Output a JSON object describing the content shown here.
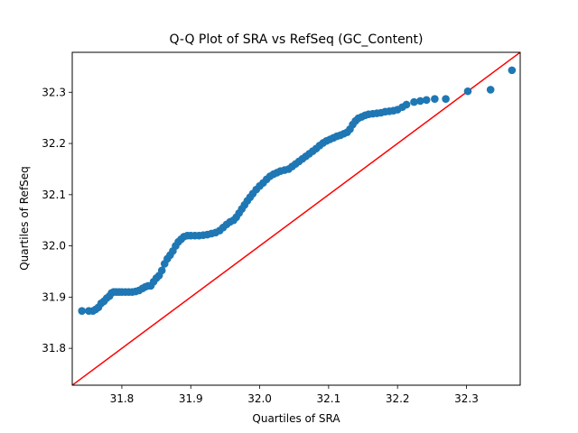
{
  "chart_data": {
    "type": "scatter",
    "title": "Q-Q Plot of SRA vs RefSeq (GC_Content)",
    "xlabel": "Quartiles of SRA",
    "ylabel": "Quartiles of RefSeq",
    "xlim": [
      31.728,
      32.378
    ],
    "ylim": [
      31.728,
      32.378
    ],
    "xticks": [
      31.8,
      31.9,
      32.0,
      32.1,
      32.2,
      32.3
    ],
    "yticks": [
      31.8,
      31.9,
      32.0,
      32.1,
      32.2,
      32.3
    ],
    "xtick_labels": [
      "31.8",
      "31.9",
      "32.0",
      "32.1",
      "32.2",
      "32.3"
    ],
    "ytick_labels": [
      "31.8",
      "31.9",
      "32.0",
      "32.1",
      "32.2",
      "32.3"
    ],
    "grid": false,
    "point_color": "#1f77b4",
    "reference_line_color": "#ff0000",
    "reference_line": {
      "x": [
        31.728,
        32.378
      ],
      "y": [
        31.728,
        32.378
      ]
    },
    "series": [
      {
        "points": [
          [
            31.742,
            31.873
          ],
          [
            31.752,
            31.873
          ],
          [
            31.758,
            31.873
          ],
          [
            31.762,
            31.876
          ],
          [
            31.766,
            31.88
          ],
          [
            31.77,
            31.888
          ],
          [
            31.774,
            31.892
          ],
          [
            31.778,
            31.898
          ],
          [
            31.782,
            31.902
          ],
          [
            31.785,
            31.908
          ],
          [
            31.788,
            31.91
          ],
          [
            31.792,
            31.91
          ],
          [
            31.796,
            31.91
          ],
          [
            31.8,
            31.91
          ],
          [
            31.805,
            31.91
          ],
          [
            31.81,
            31.91
          ],
          [
            31.815,
            31.91
          ],
          [
            31.82,
            31.911
          ],
          [
            31.825,
            31.913
          ],
          [
            31.83,
            31.917
          ],
          [
            31.834,
            31.92
          ],
          [
            31.838,
            31.922
          ],
          [
            31.842,
            31.922
          ],
          [
            31.846,
            31.93
          ],
          [
            31.85,
            31.937
          ],
          [
            31.854,
            31.942
          ],
          [
            31.858,
            31.952
          ],
          [
            31.862,
            31.965
          ],
          [
            31.866,
            31.975
          ],
          [
            31.87,
            31.982
          ],
          [
            31.874,
            31.99
          ],
          [
            31.878,
            32.0
          ],
          [
            31.882,
            32.008
          ],
          [
            31.886,
            32.013
          ],
          [
            31.89,
            32.018
          ],
          [
            31.895,
            32.02
          ],
          [
            31.9,
            32.02
          ],
          [
            31.906,
            32.02
          ],
          [
            31.912,
            32.02
          ],
          [
            31.918,
            32.021
          ],
          [
            31.924,
            32.022
          ],
          [
            31.93,
            32.024
          ],
          [
            31.936,
            32.026
          ],
          [
            31.942,
            32.03
          ],
          [
            31.947,
            32.036
          ],
          [
            31.952,
            32.042
          ],
          [
            31.957,
            32.047
          ],
          [
            31.962,
            32.05
          ],
          [
            31.966,
            32.056
          ],
          [
            31.97,
            32.064
          ],
          [
            31.974,
            32.072
          ],
          [
            31.978,
            32.08
          ],
          [
            31.982,
            32.088
          ],
          [
            31.986,
            32.095
          ],
          [
            31.99,
            32.102
          ],
          [
            31.995,
            32.11
          ],
          [
            32.0,
            32.117
          ],
          [
            32.005,
            32.123
          ],
          [
            32.01,
            32.13
          ],
          [
            32.015,
            32.136
          ],
          [
            32.02,
            32.14
          ],
          [
            32.025,
            32.143
          ],
          [
            32.03,
            32.146
          ],
          [
            32.036,
            32.148
          ],
          [
            32.042,
            32.15
          ],
          [
            32.047,
            32.155
          ],
          [
            32.052,
            32.16
          ],
          [
            32.057,
            32.165
          ],
          [
            32.062,
            32.17
          ],
          [
            32.067,
            32.175
          ],
          [
            32.072,
            32.18
          ],
          [
            32.077,
            32.185
          ],
          [
            32.082,
            32.19
          ],
          [
            32.087,
            32.196
          ],
          [
            32.092,
            32.201
          ],
          [
            32.097,
            32.205
          ],
          [
            32.102,
            32.208
          ],
          [
            32.107,
            32.211
          ],
          [
            32.112,
            32.214
          ],
          [
            32.117,
            32.216
          ],
          [
            32.122,
            32.219
          ],
          [
            32.127,
            32.222
          ],
          [
            32.131,
            32.228
          ],
          [
            32.135,
            32.237
          ],
          [
            32.139,
            32.244
          ],
          [
            32.143,
            32.249
          ],
          [
            32.148,
            32.252
          ],
          [
            32.153,
            32.255
          ],
          [
            32.158,
            32.257
          ],
          [
            32.164,
            32.258
          ],
          [
            32.17,
            32.259
          ],
          [
            32.176,
            32.26
          ],
          [
            32.182,
            32.262
          ],
          [
            32.188,
            32.263
          ],
          [
            32.194,
            32.264
          ],
          [
            32.2,
            32.266
          ],
          [
            32.207,
            32.271
          ],
          [
            32.213,
            32.276
          ],
          [
            32.224,
            32.281
          ],
          [
            32.233,
            32.283
          ],
          [
            32.242,
            32.285
          ],
          [
            32.254,
            32.287
          ],
          [
            32.27,
            32.287
          ],
          [
            32.302,
            32.302
          ],
          [
            32.335,
            32.305
          ],
          [
            32.366,
            32.343
          ]
        ]
      }
    ]
  }
}
